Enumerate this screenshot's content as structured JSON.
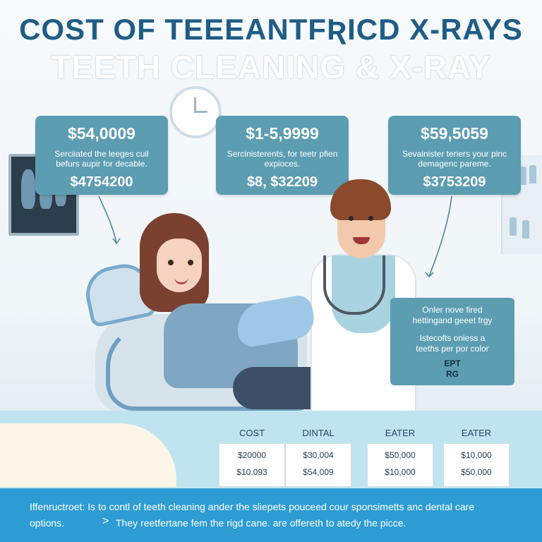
{
  "title": {
    "line1": "COST OF TEEEANTFƦICD X-RAYS",
    "line2": "TEETH CLEANING &  X-RAY"
  },
  "cards": [
    {
      "price": "$54,0009",
      "desc": "Serciiated the leeges cuil befurs aupir for decable.",
      "total": "$4754200"
    },
    {
      "price": "$1-5,9999",
      "desc": "Sercinisterents, for teetr pfien expioces.",
      "total": "$8, $32209"
    },
    {
      "price": "$59,5059",
      "desc": "Sevainister teriers your pinc demagenc pareme.",
      "total": "$3753209"
    }
  ],
  "info_card": {
    "lines": [
      "Onler nove fired",
      "hettingand geeet frgy",
      "Istecofts oniess a",
      "teeths per por color",
      "EPT",
      "RG"
    ]
  },
  "cost_table": {
    "columns": [
      {
        "header": "COST",
        "values": [
          "$20000",
          "$10.093"
        ]
      },
      {
        "header": "DINTAL",
        "values": [
          "$30,004",
          "$54,009"
        ]
      },
      {
        "header": "EATER",
        "values": [
          "$50,000",
          "$10,000"
        ]
      },
      {
        "header": "EATER",
        "values": [
          "$10,000",
          "$50,000"
        ]
      }
    ]
  },
  "footer": {
    "line1": "Iffenructroet:  Is to contl of teeth cleaning ander the sliepets pouceed cour sponsimetts anc dental care",
    "line2_left": "options.",
    "separator": ">",
    "line2_right": "They reetfertane fem the rigd cane. are offereth to atedy the picce."
  },
  "colors": {
    "title": "#1f5d86",
    "card": "#5c9db2",
    "footer": "#2d9cd2",
    "band": "#bfe4f0"
  },
  "icons": [
    "clock-icon",
    "xray-monitor-icon",
    "chevron-right-icon"
  ]
}
